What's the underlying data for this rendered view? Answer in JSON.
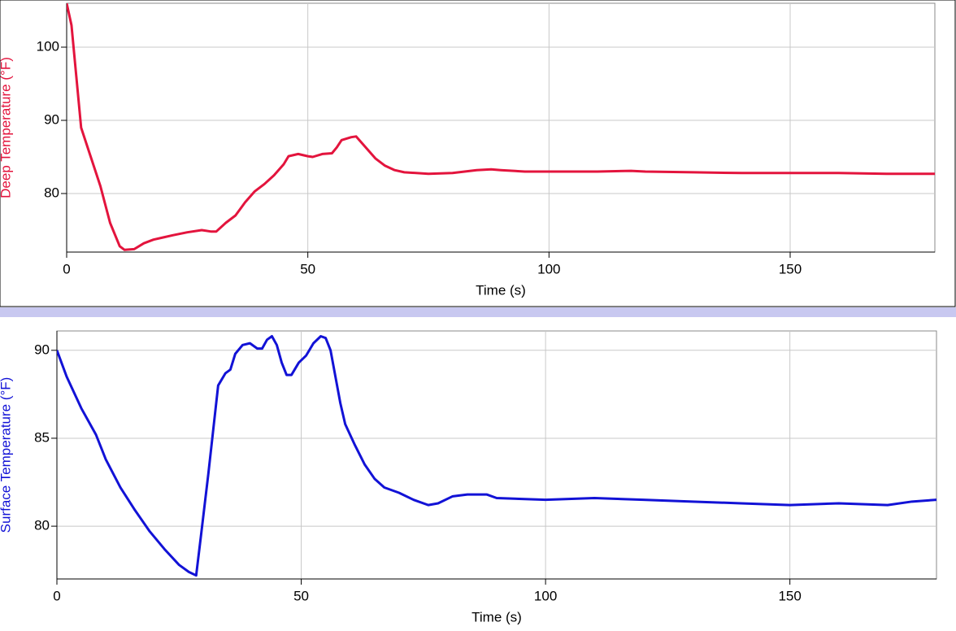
{
  "chart_data": [
    {
      "type": "line",
      "x_label": "Time (s)",
      "y_label": "Deep Temperature (°F)",
      "xlim": [
        0,
        180
      ],
      "ylim": [
        72,
        106
      ],
      "xticks": [
        0,
        50,
        100,
        150
      ],
      "yticks": [
        80,
        90,
        100
      ],
      "grid": true,
      "series": [
        {
          "name": "Deep Temperature",
          "color": "#e3143d",
          "x": [
            0,
            1,
            2,
            3,
            5,
            7,
            9,
            11,
            12,
            14,
            16,
            18,
            20,
            22,
            25,
            28,
            30,
            31,
            33,
            35,
            37,
            39,
            41,
            43,
            45,
            46,
            48,
            50,
            51,
            53,
            55,
            56,
            57,
            59,
            60,
            62,
            64,
            66,
            68,
            70,
            75,
            80,
            85,
            88,
            90,
            95,
            100,
            110,
            117,
            120,
            130,
            140,
            150,
            160,
            170,
            180
          ],
          "values": [
            106,
            103,
            96,
            89,
            85,
            81,
            76,
            72.8,
            72.3,
            72.4,
            73.2,
            73.7,
            74,
            74.3,
            74.7,
            75,
            74.8,
            74.8,
            76,
            77,
            78.8,
            80.3,
            81.3,
            82.5,
            84,
            85.1,
            85.4,
            85.1,
            85,
            85.4,
            85.5,
            86.3,
            87.3,
            87.7,
            87.8,
            86.3,
            84.8,
            83.8,
            83.2,
            82.9,
            82.7,
            82.8,
            83.2,
            83.3,
            83.2,
            83,
            83,
            83,
            83.1,
            83,
            82.9,
            82.8,
            82.8,
            82.8,
            82.7,
            82.7
          ]
        }
      ]
    },
    {
      "type": "line",
      "x_label": "Time (s)",
      "y_label": "Surface Temperature (°F)",
      "xlim": [
        0,
        180
      ],
      "ylim": [
        77,
        91.1
      ],
      "xticks": [
        0,
        50,
        100,
        150
      ],
      "yticks": [
        80,
        85,
        90
      ],
      "grid": true,
      "series": [
        {
          "name": "Surface Temperature",
          "color": "#1212d6",
          "x": [
            0,
            2,
            5,
            8,
            10,
            13,
            16,
            19,
            22,
            25,
            27,
            28.5,
            29.5,
            31,
            32,
            33,
            34.5,
            35.5,
            36.5,
            38,
            39.5,
            41,
            42,
            43,
            44,
            45,
            46,
            47,
            48,
            49.5,
            51,
            52.5,
            54,
            55,
            56,
            57,
            58,
            59,
            61,
            63,
            65,
            67,
            70,
            73,
            76,
            78,
            81,
            84,
            88,
            90,
            100,
            110,
            120,
            130,
            140,
            150,
            160,
            170,
            175,
            180
          ],
          "values": [
            90,
            88.5,
            86.7,
            85.2,
            83.8,
            82.2,
            80.9,
            79.7,
            78.7,
            77.8,
            77.4,
            77.2,
            79.5,
            83,
            85.5,
            88,
            88.7,
            88.9,
            89.8,
            90.3,
            90.4,
            90.1,
            90.1,
            90.6,
            90.8,
            90.3,
            89.3,
            88.6,
            88.6,
            89.3,
            89.7,
            90.4,
            90.8,
            90.7,
            90,
            88.5,
            87,
            85.8,
            84.6,
            83.5,
            82.7,
            82.2,
            81.9,
            81.5,
            81.2,
            81.3,
            81.7,
            81.8,
            81.8,
            81.6,
            81.5,
            81.6,
            81.5,
            81.4,
            81.3,
            81.2,
            81.3,
            81.2,
            81.4,
            81.5
          ]
        }
      ]
    }
  ]
}
